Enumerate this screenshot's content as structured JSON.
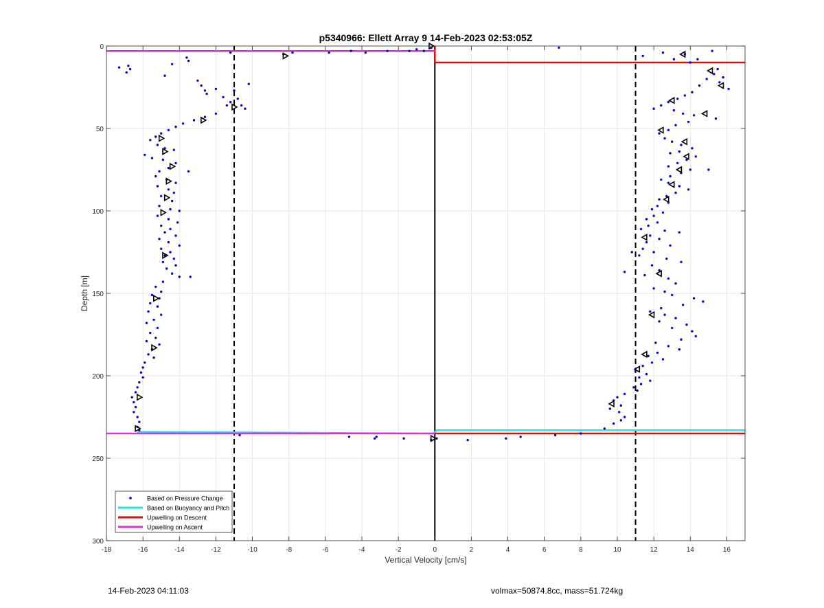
{
  "footer": {
    "left": "14-Feb-2023 04:11:03",
    "right": "volmax=50874.8cc, mass=51.724kg"
  },
  "chart_data": {
    "type": "scatter",
    "title": "p5340966: Ellett Array 9 14-Feb-2023 02:53:05Z",
    "xlabel": "Vertical Velocity [cm/s]",
    "ylabel": "Depth [m]",
    "xlim": [
      -18,
      17
    ],
    "ylim": [
      300,
      0
    ],
    "y_reversed": true,
    "grid": true,
    "xticks": [
      -18,
      -16,
      -14,
      -12,
      -10,
      -8,
      -6,
      -4,
      -2,
      0,
      2,
      4,
      6,
      8,
      10,
      12,
      14,
      16
    ],
    "yticks": [
      0,
      50,
      100,
      150,
      200,
      250,
      300
    ],
    "legend_position": "bottom-left",
    "colors": {
      "pressure": "#0000cc",
      "buoyancy": "#22e0e6",
      "descent": "#cc1111",
      "ascent": "#d633d6",
      "reference": "#000000"
    },
    "reference_lines": {
      "vertical_dashed_x": [
        -11,
        11
      ],
      "vertical_solid_x": 0
    },
    "series": [
      {
        "name": "Based on Pressure Change",
        "kind": "points",
        "points": [
          [
            -17.3,
            13
          ],
          [
            -16.9,
            16
          ],
          [
            -16.8,
            12
          ],
          [
            -16.7,
            14
          ],
          [
            -14.8,
            18
          ],
          [
            -14.4,
            11
          ],
          [
            -13.6,
            7
          ],
          [
            -13.5,
            9
          ],
          [
            -13.0,
            21
          ],
          [
            -12.8,
            24
          ],
          [
            -12.6,
            27
          ],
          [
            -12.5,
            29
          ],
          [
            -12.0,
            26
          ],
          [
            -11.6,
            31
          ],
          [
            -11.2,
            34
          ],
          [
            -11.0,
            27
          ],
          [
            -10.8,
            32
          ],
          [
            -10.6,
            36
          ],
          [
            -10.4,
            38
          ],
          [
            -10.2,
            23
          ],
          [
            -11.4,
            36
          ],
          [
            -12.0,
            41
          ],
          [
            -12.6,
            43
          ],
          [
            -13.2,
            45
          ],
          [
            -13.8,
            47
          ],
          [
            -14.2,
            49
          ],
          [
            -14.6,
            51
          ],
          [
            -15.0,
            53
          ],
          [
            -15.3,
            55
          ],
          [
            -15.6,
            57
          ],
          [
            -15.2,
            60
          ],
          [
            -14.8,
            62
          ],
          [
            -14.3,
            63
          ],
          [
            -15.9,
            66
          ],
          [
            -15.5,
            68
          ],
          [
            -14.9,
            69
          ],
          [
            -14.2,
            71
          ],
          [
            -14.6,
            74
          ],
          [
            -15.1,
            76
          ],
          [
            -13.5,
            76
          ],
          [
            -15.3,
            79
          ],
          [
            -14.7,
            81
          ],
          [
            -14.2,
            83
          ],
          [
            -15.2,
            85
          ],
          [
            -14.6,
            87
          ],
          [
            -14.3,
            89
          ],
          [
            -15.0,
            91
          ],
          [
            -14.4,
            94
          ],
          [
            -15.1,
            97
          ],
          [
            -14.5,
            99
          ],
          [
            -14.0,
            100
          ],
          [
            -15.2,
            103
          ],
          [
            -14.6,
            105
          ],
          [
            -14.1,
            107
          ],
          [
            -15.0,
            109
          ],
          [
            -14.5,
            111
          ],
          [
            -14.8,
            113
          ],
          [
            -14.2,
            115
          ],
          [
            -15.1,
            117
          ],
          [
            -14.6,
            119
          ],
          [
            -14.0,
            121
          ],
          [
            -15.0,
            123
          ],
          [
            -14.5,
            125
          ],
          [
            -14.8,
            127
          ],
          [
            -14.3,
            129
          ],
          [
            -14.9,
            131
          ],
          [
            -14.2,
            133
          ],
          [
            -14.7,
            135
          ],
          [
            -14.4,
            138
          ],
          [
            -14.0,
            140
          ],
          [
            -13.4,
            140
          ],
          [
            -14.9,
            143
          ],
          [
            -15.3,
            146
          ],
          [
            -15.0,
            149
          ],
          [
            -15.5,
            151
          ],
          [
            -15.1,
            153
          ],
          [
            -15.6,
            156
          ],
          [
            -15.2,
            158
          ],
          [
            -15.7,
            161
          ],
          [
            -15.0,
            163
          ],
          [
            -15.4,
            166
          ],
          [
            -15.8,
            168
          ],
          [
            -15.2,
            171
          ],
          [
            -15.6,
            174
          ],
          [
            -15.3,
            177
          ],
          [
            -15.8,
            179
          ],
          [
            -15.1,
            181
          ],
          [
            -15.5,
            184
          ],
          [
            -15.7,
            187
          ],
          [
            -15.4,
            189
          ],
          [
            -15.9,
            192
          ],
          [
            -16.0,
            195
          ],
          [
            -16.1,
            198
          ],
          [
            -16.0,
            201
          ],
          [
            -16.2,
            204
          ],
          [
            -16.3,
            207
          ],
          [
            -16.4,
            210
          ],
          [
            -16.6,
            213
          ],
          [
            -16.5,
            216
          ],
          [
            -16.4,
            219
          ],
          [
            -16.5,
            222
          ],
          [
            -16.3,
            225
          ],
          [
            -16.2,
            228
          ],
          [
            -16.3,
            231
          ],
          [
            -16.2,
            233
          ],
          [
            -11.2,
            4
          ],
          [
            -8.3,
            5
          ],
          [
            -7.8,
            4
          ],
          [
            -5.8,
            4
          ],
          [
            -4.6,
            3
          ],
          [
            -3.8,
            4
          ],
          [
            -2.6,
            3
          ],
          [
            -1.4,
            3
          ],
          [
            -1.0,
            2
          ],
          [
            -0.6,
            3
          ],
          [
            -0.2,
            1
          ],
          [
            6.8,
            1
          ],
          [
            11.4,
            6
          ],
          [
            12.5,
            4
          ],
          [
            13.1,
            8
          ],
          [
            13.7,
            5
          ],
          [
            14.0,
            10
          ],
          [
            14.4,
            8
          ],
          [
            15.2,
            3
          ],
          [
            15.5,
            14
          ],
          [
            15.8,
            19
          ],
          [
            16.1,
            26
          ],
          [
            15.6,
            22
          ],
          [
            15.3,
            17
          ],
          [
            14.9,
            20
          ],
          [
            14.5,
            24
          ],
          [
            14.1,
            28
          ],
          [
            13.7,
            30
          ],
          [
            13.3,
            32
          ],
          [
            12.8,
            34
          ],
          [
            12.4,
            36
          ],
          [
            12.0,
            38
          ],
          [
            13.1,
            39
          ],
          [
            13.6,
            41
          ],
          [
            14.2,
            42
          ],
          [
            15.4,
            44
          ],
          [
            13.9,
            46
          ],
          [
            13.2,
            48
          ],
          [
            12.8,
            51
          ],
          [
            12.3,
            53
          ],
          [
            12.6,
            56
          ],
          [
            13.0,
            58
          ],
          [
            13.5,
            60
          ],
          [
            14.1,
            62
          ],
          [
            13.4,
            64
          ],
          [
            12.9,
            65
          ],
          [
            14.3,
            67
          ],
          [
            13.8,
            69
          ],
          [
            13.3,
            71
          ],
          [
            12.8,
            73
          ],
          [
            14.0,
            75
          ],
          [
            15.0,
            75
          ],
          [
            13.5,
            77
          ],
          [
            12.9,
            79
          ],
          [
            12.4,
            81
          ],
          [
            12.8,
            83
          ],
          [
            13.4,
            85
          ],
          [
            13.9,
            87
          ],
          [
            13.2,
            89
          ],
          [
            12.7,
            91
          ],
          [
            12.3,
            93
          ],
          [
            12.8,
            95
          ],
          [
            12.2,
            97
          ],
          [
            11.9,
            99
          ],
          [
            12.5,
            101
          ],
          [
            12.0,
            103
          ],
          [
            11.6,
            105
          ],
          [
            12.2,
            107
          ],
          [
            11.7,
            109
          ],
          [
            11.3,
            111
          ],
          [
            12.6,
            112
          ],
          [
            13.4,
            113
          ],
          [
            11.8,
            115
          ],
          [
            12.3,
            117
          ],
          [
            11.6,
            119
          ],
          [
            12.9,
            121
          ],
          [
            11.4,
            123
          ],
          [
            12.0,
            125
          ],
          [
            10.8,
            125
          ],
          [
            11.2,
            127
          ],
          [
            12.7,
            129
          ],
          [
            13.5,
            131
          ],
          [
            11.9,
            133
          ],
          [
            12.3,
            136
          ],
          [
            10.4,
            137
          ],
          [
            11.5,
            139
          ],
          [
            12.8,
            141
          ],
          [
            13.2,
            144
          ],
          [
            12.0,
            147
          ],
          [
            12.6,
            149
          ],
          [
            13.0,
            151
          ],
          [
            14.2,
            153
          ],
          [
            14.7,
            155
          ],
          [
            13.6,
            157
          ],
          [
            12.4,
            159
          ],
          [
            11.8,
            161
          ],
          [
            12.6,
            163
          ],
          [
            13.2,
            165
          ],
          [
            12.3,
            167
          ],
          [
            13.8,
            169
          ],
          [
            13.0,
            171
          ],
          [
            14.1,
            173
          ],
          [
            14.3,
            176
          ],
          [
            13.5,
            178
          ],
          [
            12.1,
            180
          ],
          [
            12.8,
            182
          ],
          [
            13.4,
            184
          ],
          [
            12.2,
            186
          ],
          [
            11.7,
            188
          ],
          [
            12.5,
            190
          ],
          [
            11.9,
            192
          ],
          [
            11.4,
            194
          ],
          [
            11.0,
            197
          ],
          [
            11.6,
            199
          ],
          [
            11.2,
            201
          ],
          [
            11.8,
            203
          ],
          [
            11.3,
            205
          ],
          [
            10.9,
            207
          ],
          [
            11.1,
            209
          ],
          [
            10.4,
            211
          ],
          [
            10.0,
            213
          ],
          [
            9.8,
            215
          ],
          [
            10.2,
            218
          ],
          [
            9.6,
            220
          ],
          [
            10.1,
            222
          ],
          [
            10.4,
            225
          ],
          [
            10.2,
            227
          ],
          [
            9.8,
            229
          ],
          [
            9.3,
            232
          ],
          [
            -10.7,
            236
          ],
          [
            -4.7,
            237
          ],
          [
            -3.3,
            238
          ],
          [
            -3.2,
            237
          ],
          [
            -1.7,
            238
          ],
          [
            -0.2,
            239
          ],
          [
            0.1,
            238
          ],
          [
            1.8,
            239
          ],
          [
            3.9,
            238
          ],
          [
            4.7,
            237
          ],
          [
            6.6,
            236
          ],
          [
            8.0,
            235
          ]
        ]
      },
      {
        "name": "",
        "kind": "markers",
        "points": [
          [
            -8.2,
            6
          ],
          [
            -0.2,
            0
          ],
          [
            -11.0,
            37
          ],
          [
            -12.7,
            45
          ],
          [
            -15.0,
            56
          ],
          [
            -14.8,
            64
          ],
          [
            -14.4,
            73
          ],
          [
            -14.6,
            82
          ],
          [
            -14.7,
            92
          ],
          [
            -14.9,
            101
          ],
          [
            -14.8,
            127
          ],
          [
            -15.3,
            153
          ],
          [
            -15.4,
            183
          ],
          [
            -16.2,
            213
          ],
          [
            -16.3,
            232
          ],
          [
            -0.1,
            238
          ],
          [
            13.6,
            5
          ],
          [
            15.1,
            15
          ],
          [
            15.7,
            24
          ],
          [
            13.0,
            33
          ],
          [
            14.8,
            41
          ],
          [
            12.4,
            51
          ],
          [
            13.7,
            58
          ],
          [
            13.8,
            67
          ],
          [
            13.4,
            75
          ],
          [
            13.0,
            84
          ],
          [
            12.7,
            93
          ],
          [
            11.5,
            116
          ],
          [
            12.3,
            138
          ],
          [
            11.9,
            163
          ],
          [
            11.5,
            187
          ],
          [
            11.1,
            196
          ],
          [
            9.7,
            217
          ]
        ]
      },
      {
        "name": "Based on Buoyancy and Pitch",
        "kind": "line",
        "points": [
          [
            -16.3,
            234
          ],
          [
            -0.1,
            235
          ],
          [
            0.1,
            233
          ],
          [
            17,
            233
          ]
        ]
      },
      {
        "name": "Upwelling on Descent",
        "kind": "line",
        "points": [
          [
            0,
            0
          ],
          [
            0,
            10
          ],
          [
            17,
            10
          ]
        ],
        "points_bottom": [
          [
            0,
            235
          ],
          [
            17,
            235
          ]
        ]
      },
      {
        "name": "Upwelling on Ascent",
        "kind": "line",
        "points": [
          [
            -18,
            3
          ],
          [
            0,
            3
          ]
        ],
        "points_bottom": [
          [
            -18,
            235
          ],
          [
            0,
            235
          ]
        ]
      }
    ]
  }
}
